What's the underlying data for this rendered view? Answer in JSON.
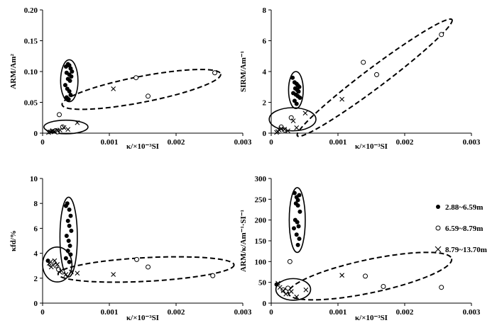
{
  "colors": {
    "axis": "#000000",
    "background": "#ffffff",
    "marker": "#000000"
  },
  "legend": [
    {
      "marker": "filled-circle",
      "label": "2.88~6.59m"
    },
    {
      "marker": "open-circle",
      "label": "6.59~8.79m"
    },
    {
      "marker": "cross",
      "label": "8.79~13.70m"
    }
  ],
  "chart_data": [
    {
      "type": "scatter",
      "ylabel": "ARM/Am²",
      "xlabel": "κ/×10⁻³SI",
      "xlim": [
        0,
        0.003
      ],
      "ylim": [
        0,
        0.2
      ],
      "xticks": [
        "0",
        "0.001",
        "0.002",
        "0.003"
      ],
      "yticks": [
        "0",
        "0.05",
        "0.10",
        "0.15",
        "0.20"
      ],
      "ytick_values": [
        0,
        0.05,
        0.1,
        0.15,
        0.2
      ],
      "series": [
        {
          "name": "2.88~6.59m",
          "marker": "filled",
          "x": [
            0.00035,
            0.00038,
            0.0004,
            0.00042,
            0.00044,
            0.00036,
            0.0004,
            0.00043,
            0.00038,
            0.00041,
            0.00034,
            0.00037,
            0.0004,
            0.00042,
            0.00036,
            0.00039
          ],
          "y": [
            0.108,
            0.112,
            0.11,
            0.105,
            0.1,
            0.098,
            0.095,
            0.092,
            0.088,
            0.085,
            0.078,
            0.072,
            0.068,
            0.062,
            0.058,
            0.055
          ]
        },
        {
          "name": "6.59~8.79m",
          "marker": "open",
          "x": [
            0.00025,
            0.0003,
            0.0014,
            0.00158,
            0.00258,
            0.0002,
            0.00022
          ],
          "y": [
            0.03,
            0.01,
            0.09,
            0.06,
            0.098,
            0.004,
            0.002
          ]
        },
        {
          "name": "8.79~13.70m",
          "marker": "cross",
          "x": [
            0.00012,
            0.00015,
            0.00018,
            0.00022,
            0.00026,
            0.00032,
            0.00038,
            0.00052,
            0.00106,
            9e-05,
            0.00014
          ],
          "y": [
            0.002,
            0.004,
            0.003,
            0.004,
            0.005,
            0.009,
            0.006,
            0.017,
            0.072,
            0.001,
            0.003
          ]
        }
      ],
      "ellipses": [
        {
          "cx": 0.0004,
          "cy": 0.085,
          "rx": 0.00013,
          "ry": 0.034,
          "angle": 0,
          "style": "solid"
        },
        {
          "cx": 0.00035,
          "cy": 0.01,
          "rx": 0.00033,
          "ry": 0.011,
          "angle": 0,
          "style": "solid"
        },
        {
          "cx": 0.00148,
          "cy": 0.071,
          "rx": 0.00121,
          "ry": 0.021,
          "angle": -11,
          "style": "dashed"
        }
      ]
    },
    {
      "type": "scatter",
      "ylabel": "SIRM/Am⁻¹",
      "xlabel": "κ/×10⁻³SI",
      "xlim": [
        0,
        0.003
      ],
      "ylim": [
        0,
        8
      ],
      "xticks": [
        "0",
        "0.001",
        "0.002",
        "0.003"
      ],
      "yticks": [
        "0",
        "2",
        "4",
        "6",
        "8"
      ],
      "ytick_values": [
        0,
        2,
        4,
        6,
        8
      ],
      "series": [
        {
          "name": "2.88~6.59m",
          "marker": "filled",
          "x": [
            0.00032,
            0.00035,
            0.00038,
            0.0004,
            0.00042,
            0.00036,
            0.00039,
            0.00041,
            0.00033,
            0.00037,
            0.0004,
            0.00043,
            0.00035,
            0.00038
          ],
          "y": [
            3.6,
            3.3,
            3.2,
            3.1,
            3.0,
            2.9,
            2.8,
            2.7,
            2.6,
            2.5,
            2.4,
            2.3,
            2.1,
            1.9
          ]
        },
        {
          "name": "6.59~8.79m",
          "marker": "open",
          "x": [
            0.0003,
            0.00138,
            0.00158,
            0.00255,
            0.00015,
            0.0002
          ],
          "y": [
            1.0,
            4.6,
            3.8,
            6.4,
            0.4,
            0.2
          ]
        },
        {
          "name": "8.79~13.70m",
          "marker": "cross",
          "x": [
            0.0001,
            0.00012,
            0.00015,
            0.0002,
            0.00025,
            0.00033,
            0.00038,
            0.00051,
            0.00106,
            8e-05
          ],
          "y": [
            0.1,
            0.2,
            0.3,
            0.25,
            0.15,
            0.8,
            0.35,
            1.3,
            2.2,
            0.05
          ]
        }
      ],
      "ellipses": [
        {
          "cx": 0.00037,
          "cy": 2.8,
          "rx": 0.00011,
          "ry": 1.2,
          "angle": 0,
          "style": "solid"
        },
        {
          "cx": 0.00032,
          "cy": 0.9,
          "rx": 0.00035,
          "ry": 0.75,
          "angle": 0,
          "style": "solid"
        },
        {
          "cx": 0.00155,
          "cy": 3.6,
          "rx": 0.00145,
          "ry": 0.65,
          "angle": -37,
          "style": "dashed"
        }
      ]
    },
    {
      "type": "scatter",
      "ylabel": "κfd/%",
      "xlabel": "κ/×10⁻³SI",
      "xlim": [
        0,
        0.003
      ],
      "ylim": [
        0,
        10
      ],
      "xticks": [
        "0",
        "0.001",
        "0.002",
        "0.003"
      ],
      "yticks": [
        "0",
        "2",
        "4",
        "6",
        "8",
        "10"
      ],
      "ytick_values": [
        0,
        2,
        4,
        6,
        8,
        10
      ],
      "series": [
        {
          "name": "2.88~6.59m",
          "marker": "filled",
          "x": [
            0.00035,
            0.00037,
            0.0004,
            0.00042,
            0.00038,
            0.0004,
            0.00043,
            0.00036,
            0.00039,
            0.00041,
            0.00038,
            0.00042,
            0.00035,
            0.0004,
            8e-05
          ],
          "y": [
            7.8,
            8.0,
            7.5,
            7.0,
            6.6,
            6.2,
            5.8,
            5.4,
            5.0,
            4.6,
            4.2,
            3.9,
            3.6,
            3.3,
            3.4
          ]
        },
        {
          "name": "6.59~8.79m",
          "marker": "open",
          "x": [
            0.00012,
            0.00016,
            0.0002,
            0.00024,
            0.0003,
            0.00141,
            0.00158,
            0.00255
          ],
          "y": [
            3.1,
            3.3,
            3.0,
            2.7,
            2.5,
            3.5,
            2.9,
            2.2
          ]
        },
        {
          "name": "8.79~13.70m",
          "marker": "cross",
          "x": [
            0.0001,
            0.00013,
            0.00018,
            0.00022,
            0.00028,
            0.00035,
            0.00043,
            0.00052,
            0.00106
          ],
          "y": [
            3.2,
            2.9,
            3.4,
            3.1,
            2.6,
            2.3,
            2.5,
            2.4,
            2.3
          ]
        }
      ],
      "ellipses": [
        {
          "cx": 0.00039,
          "cy": 5.3,
          "rx": 0.00013,
          "ry": 3.2,
          "angle": 0,
          "style": "solid"
        },
        {
          "cx": 0.00022,
          "cy": 3.1,
          "rx": 0.00022,
          "ry": 1.4,
          "angle": 0,
          "style": "solid"
        },
        {
          "cx": 0.00155,
          "cy": 2.7,
          "rx": 0.00132,
          "ry": 0.95,
          "angle": -3,
          "style": "dashed"
        }
      ]
    },
    {
      "type": "scatter",
      "ylabel": "ARM/κ/Am⁻¹·SI⁻¹",
      "xlabel": "κ/×10⁻³SI",
      "xlim": [
        0,
        0.003
      ],
      "ylim": [
        0,
        300
      ],
      "xticks": [
        "0",
        "0.001",
        "0.002",
        "0.003"
      ],
      "yticks": [
        "0",
        "50",
        "100",
        "150",
        "200",
        "250",
        "300"
      ],
      "ytick_values": [
        0,
        50,
        100,
        150,
        200,
        250,
        300
      ],
      "series": [
        {
          "name": "2.88~6.59m",
          "marker": "filled",
          "x": [
            0.00035,
            0.00038,
            0.0004,
            0.00042,
            0.00037,
            0.0004,
            0.00043,
            0.00036,
            0.00039,
            0.00041,
            0.00034,
            0.00038,
            0.00042,
            0.0004,
            8e-05
          ],
          "y": [
            265,
            255,
            248,
            260,
            240,
            235,
            220,
            200,
            195,
            185,
            180,
            165,
            155,
            140,
            45
          ]
        },
        {
          "name": "6.59~8.79m",
          "marker": "open",
          "x": [
            0.00028,
            0.00018,
            0.00022,
            0.00025,
            0.00141,
            0.00168,
            0.00255
          ],
          "y": [
            100,
            32,
            28,
            36,
            65,
            40,
            38
          ]
        },
        {
          "name": "8.79~13.70m",
          "marker": "cross",
          "x": [
            0.0001,
            0.00013,
            0.00018,
            0.00022,
            0.0003,
            0.00038,
            0.00052,
            0.00106
          ],
          "y": [
            48,
            38,
            30,
            22,
            28,
            15,
            32,
            67
          ]
        }
      ],
      "ellipses": [
        {
          "cx": 0.00039,
          "cy": 200,
          "rx": 0.00012,
          "ry": 78,
          "angle": 0,
          "style": "solid"
        },
        {
          "cx": 0.00033,
          "cy": 33,
          "rx": 0.00026,
          "ry": 26,
          "angle": 0,
          "style": "solid"
        },
        {
          "cx": 0.00148,
          "cy": 65,
          "rx": 0.00125,
          "ry": 40,
          "angle": -12,
          "style": "dashed"
        }
      ]
    }
  ]
}
